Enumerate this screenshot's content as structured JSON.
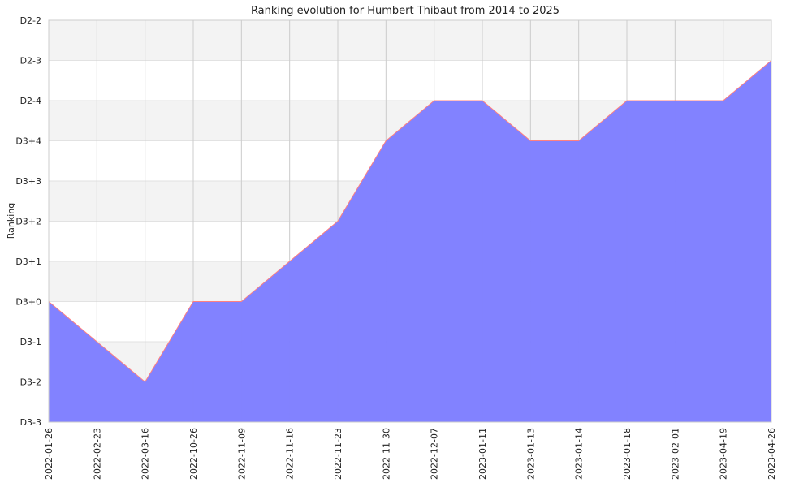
{
  "chart_data": {
    "type": "area",
    "title": "Ranking evolution for Humbert Thibaut from 2014 to 2025",
    "xlabel": "",
    "ylabel": "Ranking",
    "x": [
      "2022-01-26",
      "2022-02-23",
      "2022-03-16",
      "2022-10-26",
      "2022-11-09",
      "2022-11-16",
      "2022-11-23",
      "2022-11-30",
      "2022-12-07",
      "2023-01-11",
      "2023-01-13",
      "2023-01-14",
      "2023-01-18",
      "2023-02-01",
      "2023-04-19",
      "2023-04-26"
    ],
    "y_categories": [
      "D3-3",
      "D3-2",
      "D3-1",
      "D3+0",
      "D3+1",
      "D3+2",
      "D3+3",
      "D3+4",
      "D2-4",
      "D2-3",
      "D2-2"
    ],
    "series": [
      {
        "values": [
          "D3+0",
          "D3-1",
          "D3-2",
          "D3+0",
          "D3+0",
          "D3+1",
          "D3+2",
          "D3+4",
          "D2-4",
          "D2-4",
          "D3+4",
          "D3+4",
          "D2-4",
          "D2-4",
          "D2-4",
          "D2-3"
        ]
      }
    ],
    "grid": true,
    "colors": {
      "fill": "#8080ff",
      "line": "#ff8080",
      "band": "#f3f3f3",
      "grid": "#cccccc"
    }
  }
}
